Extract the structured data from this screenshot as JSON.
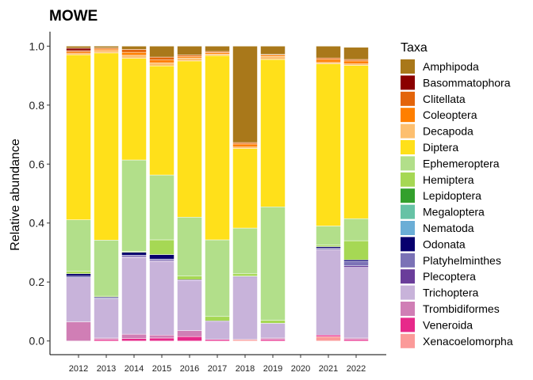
{
  "chart_data": {
    "type": "bar",
    "stacked": true,
    "title": "MOWE",
    "xlabel": "",
    "ylabel": "Relative abundance",
    "ylim": [
      0,
      1
    ],
    "yticks": [
      "0.0",
      "0.2",
      "0.4",
      "0.6",
      "0.8",
      "1.0"
    ],
    "categories": [
      "2012",
      "2013",
      "2014",
      "2015",
      "2016",
      "2017",
      "2018",
      "2019",
      "2020",
      "2021",
      "2022"
    ],
    "legend": {
      "title": "Taxa",
      "position": "right"
    },
    "series": [
      {
        "name": "Xenacoelomorpha",
        "color": "#FB9A99",
        "values": [
          0,
          0,
          0,
          0,
          0,
          0,
          0.005,
          0,
          0,
          0.015,
          0
        ]
      },
      {
        "name": "Veneroida",
        "color": "#E7298A",
        "values": [
          0,
          0.005,
          0.008,
          0.01,
          0.015,
          0.005,
          0,
          0.005,
          0,
          0.005,
          0.005
        ]
      },
      {
        "name": "Trombidiformes",
        "color": "#D07EB5",
        "values": [
          0.065,
          0.005,
          0.015,
          0.01,
          0.02,
          0,
          0,
          0.005,
          0,
          0,
          0.005
        ]
      },
      {
        "name": "Trichoptera",
        "color": "#C8B3DA",
        "values": [
          0.15,
          0.13,
          0.26,
          0.25,
          0.17,
          0.06,
          0.21,
          0.05,
          0,
          0.29,
          0.24
        ]
      },
      {
        "name": "Plecoptera",
        "color": "#6A3D9A",
        "values": [
          0,
          0.003,
          0.003,
          0.003,
          0.003,
          0.003,
          0.003,
          0,
          0,
          0,
          0.005
        ]
      },
      {
        "name": "Platyhelminthes",
        "color": "#7B72B6",
        "values": [
          0.005,
          0.003,
          0.005,
          0.005,
          0,
          0,
          0.002,
          0,
          0,
          0.005,
          0.015
        ]
      },
      {
        "name": "Odonata",
        "color": "#08006E",
        "values": [
          0.008,
          0.003,
          0.01,
          0.015,
          0,
          0,
          0,
          0,
          0,
          0.005,
          0.005
        ]
      },
      {
        "name": "Nematoda",
        "color": "#6BAED6",
        "values": [
          0,
          0,
          0,
          0,
          0,
          0,
          0,
          0,
          0,
          0,
          0
        ]
      },
      {
        "name": "Megaloptera",
        "color": "#66C2A5",
        "values": [
          0,
          0,
          0,
          0,
          0,
          0,
          0,
          0,
          0,
          0,
          0
        ]
      },
      {
        "name": "Lepidoptera",
        "color": "#33A02C",
        "values": [
          0,
          0,
          0,
          0,
          0,
          0,
          0,
          0,
          0,
          0,
          0
        ]
      },
      {
        "name": "Hemiptera",
        "color": "#A6D854",
        "values": [
          0.008,
          0.003,
          0.003,
          0.05,
          0.012,
          0.015,
          0.008,
          0.01,
          0,
          0.005,
          0.065
        ]
      },
      {
        "name": "Ephemeroptera",
        "color": "#B2DF8A",
        "values": [
          0.175,
          0.19,
          0.31,
          0.22,
          0.2,
          0.26,
          0.155,
          0.385,
          0,
          0.065,
          0.075
        ]
      },
      {
        "name": "Diptera",
        "color": "#FFE01A",
        "values": [
          0.56,
          0.635,
          0.345,
          0.37,
          0.53,
          0.625,
          0.27,
          0.5,
          0,
          0.55,
          0.52
        ]
      },
      {
        "name": "Decapoda",
        "color": "#FDBF6F",
        "values": [
          0.004,
          0.008,
          0.01,
          0.01,
          0.01,
          0.005,
          0.005,
          0.01,
          0,
          0.005,
          0.005
        ]
      },
      {
        "name": "Coleoptera",
        "color": "#FF7F00",
        "values": [
          0.005,
          0.005,
          0.01,
          0.01,
          0.005,
          0.005,
          0.01,
          0.005,
          0,
          0.01,
          0.01
        ]
      },
      {
        "name": "Clitellata",
        "color": "#E3640A",
        "values": [
          0.005,
          0.004,
          0.01,
          0.01,
          0.005,
          0.004,
          0.005,
          0.002,
          0,
          0.005,
          0.005
        ]
      },
      {
        "name": "Basommatophora",
        "color": "#8B0000",
        "values": [
          0.008,
          0,
          0,
          0,
          0,
          0,
          0,
          0,
          0,
          0,
          0
        ]
      },
      {
        "name": "Amphipoda",
        "color": "#A9781A",
        "values": [
          0.007,
          0.006,
          0.011,
          0.037,
          0.03,
          0.018,
          0.327,
          0.028,
          0,
          0.04,
          0.041
        ]
      }
    ]
  }
}
